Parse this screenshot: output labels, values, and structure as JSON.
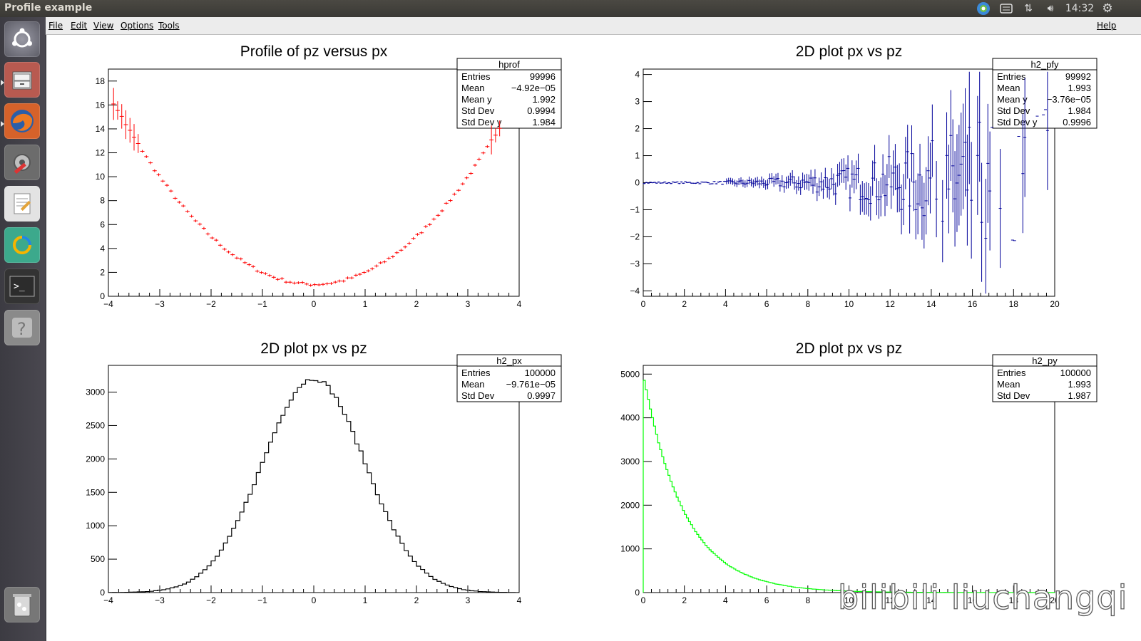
{
  "window": {
    "title": "Profile example"
  },
  "tray": {
    "time": "14:32"
  },
  "menubar": {
    "file": "File",
    "edit": "Edit",
    "view": "View",
    "options": "Options",
    "tools": "Tools",
    "help": "Help"
  },
  "launcher": {
    "items": [
      "ubuntu-dash-icon",
      "file-cabinet-icon",
      "firefox-icon",
      "system-settings-icon",
      "text-editor-icon",
      "software-updater-icon",
      "terminal-icon",
      "help-icon",
      "trash-icon"
    ]
  },
  "watermark": "bilibili liuchangqi",
  "colors": {
    "profile": "#ff0000",
    "pfy": "#000099",
    "px": "#000000",
    "py": "#00ff00"
  },
  "chart_data": [
    {
      "type": "scatter",
      "title": "Profile of pz versus px",
      "xlim": [
        -4,
        4
      ],
      "ylim": [
        0,
        19
      ],
      "xticks": [
        -4,
        -3,
        -2,
        -1,
        0,
        1,
        2,
        3,
        4
      ],
      "yticks": [
        0,
        2,
        4,
        6,
        8,
        10,
        12,
        14,
        16,
        18
      ],
      "series": [
        {
          "values_formula": "y = x^2 + 1",
          "x_range": [
            -3.9,
            3.65
          ],
          "errors": "small, larger at edges"
        }
      ],
      "stats": {
        "name": "hprof",
        "rows": [
          [
            "Entries",
            "99996"
          ],
          [
            "Mean",
            "−4.92e−05"
          ],
          [
            "Mean y",
            "1.992"
          ],
          [
            "Std Dev",
            "0.9994"
          ],
          [
            "Std Dev y",
            "1.984"
          ]
        ]
      }
    },
    {
      "type": "scatter",
      "title": "2D plot px vs pz",
      "xlim": [
        0,
        20
      ],
      "ylim": [
        -4.2,
        4.2
      ],
      "xticks": [
        0,
        2,
        4,
        6,
        8,
        10,
        12,
        14,
        16,
        18,
        20
      ],
      "yticks": [
        -4,
        -3,
        -2,
        -1,
        0,
        1,
        2,
        3,
        4
      ],
      "series": [
        {
          "description": "profile of px vs pz, mean ~0, error growing with x"
        }
      ],
      "stats": {
        "name": "h2_pfy",
        "rows": [
          [
            "Entries",
            "99992"
          ],
          [
            "Mean",
            "1.993"
          ],
          [
            "Mean y",
            "−3.76e−05"
          ],
          [
            "Std Dev",
            "1.984"
          ],
          [
            "Std Dev y",
            "0.9996"
          ]
        ]
      }
    },
    {
      "type": "bar",
      "title": "2D plot px vs pz",
      "xlim": [
        -4,
        4
      ],
      "ylim": [
        0,
        3400
      ],
      "xticks": [
        -4,
        -3,
        -2,
        -1,
        0,
        1,
        2,
        3,
        4
      ],
      "yticks": [
        0,
        500,
        1000,
        1500,
        2000,
        2500,
        3000
      ],
      "series": [
        {
          "description": "gaussian histogram, mean 0, sigma 1, peak ~3200"
        }
      ],
      "stats": {
        "name": "h2_px",
        "rows": [
          [
            "Entries",
            "100000"
          ],
          [
            "Mean",
            "−9.761e−05"
          ],
          [
            "Std Dev",
            "0.9997"
          ]
        ]
      }
    },
    {
      "type": "bar",
      "title": "2D plot px vs pz",
      "xlim": [
        0,
        20
      ],
      "ylim": [
        0,
        5200
      ],
      "xticks": [
        0,
        2,
        4,
        6,
        8,
        10,
        12,
        14,
        16,
        18,
        20
      ],
      "yticks": [
        0,
        1000,
        2000,
        3000,
        4000,
        5000
      ],
      "series": [
        {
          "description": "exponential histogram, peak ~5000, decay constant 2"
        }
      ],
      "stats": {
        "name": "h2_py",
        "rows": [
          [
            "Entries",
            "100000"
          ],
          [
            "Mean",
            "1.993"
          ],
          [
            "Std Dev",
            "1.987"
          ]
        ]
      }
    }
  ]
}
